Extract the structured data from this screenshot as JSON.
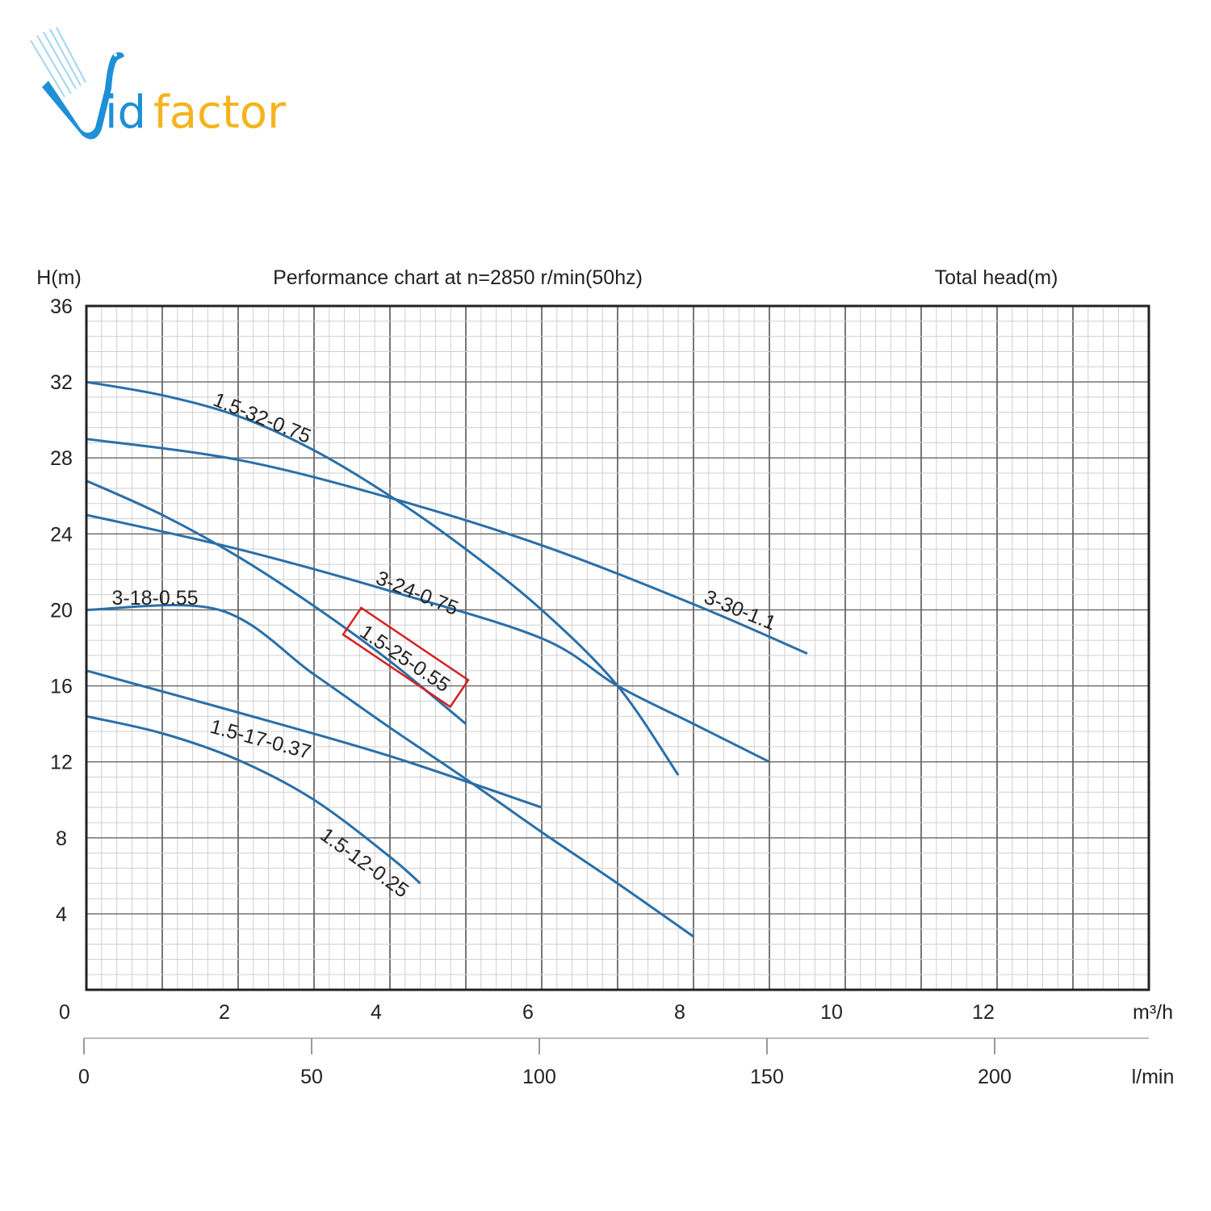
{
  "logo": {
    "text": "Vidfactor",
    "id_part": "id",
    "factor_part": "factor",
    "colors": {
      "blue": "#1e90d6",
      "orange": "#f5b31c"
    }
  },
  "chart_data": {
    "type": "line",
    "title": "Performance chart at n=2850 r/min(50hz)",
    "ylabel": "H(m)",
    "ylabel_right": "Total head(m)",
    "xlabel": "m³/h",
    "xlabel_secondary": "l/min",
    "xlim": [
      0,
      14
    ],
    "ylim": [
      0,
      36
    ],
    "x_ticks": [
      0,
      2,
      4,
      6,
      8,
      10,
      12
    ],
    "y_ticks": [
      4,
      8,
      12,
      16,
      20,
      24,
      28,
      32,
      36
    ],
    "secondary_x_ticks": [
      0,
      50,
      100,
      150,
      200
    ],
    "grid": true,
    "line_color": "#2a6fa8",
    "highlight_color": "#d62020",
    "series": [
      {
        "name": "1.5-32-0.75",
        "x": [
          0,
          1,
          2,
          3,
          4,
          5,
          6,
          7,
          7.8
        ],
        "y": [
          32,
          31.3,
          30.2,
          28.4,
          26,
          23.2,
          20,
          16,
          11.3
        ]
      },
      {
        "name": "3-30-1.1",
        "x": [
          0,
          2,
          4,
          6,
          8,
          9.5
        ],
        "y": [
          29,
          27.9,
          25.9,
          23.4,
          20.3,
          17.7
        ]
      },
      {
        "name": "3-24-0.75",
        "x": [
          0,
          2,
          4,
          6,
          7,
          8,
          9
        ],
        "y": [
          25,
          23.2,
          21,
          18.5,
          16,
          14,
          12
        ]
      },
      {
        "name": "1.5-25-0.55",
        "x": [
          0,
          1,
          2,
          3,
          4,
          5
        ],
        "y": [
          26.8,
          25,
          22.8,
          20.2,
          17.3,
          14
        ],
        "highlighted": true
      },
      {
        "name": "3-18-0.55",
        "x": [
          0,
          1.75,
          3,
          4,
          5,
          6,
          7,
          8
        ],
        "y": [
          20,
          20,
          16.6,
          13.8,
          11.1,
          8.3,
          5.6,
          2.8
        ]
      },
      {
        "name": "1.5-17-0.37",
        "x": [
          0,
          2,
          4,
          6
        ],
        "y": [
          16.8,
          14.6,
          12.3,
          9.6
        ]
      },
      {
        "name": "1.5-12-0.25",
        "x": [
          0,
          1,
          2,
          3,
          4,
          4.4
        ],
        "y": [
          14.4,
          13.5,
          12.1,
          10,
          7,
          5.6
        ]
      }
    ]
  }
}
